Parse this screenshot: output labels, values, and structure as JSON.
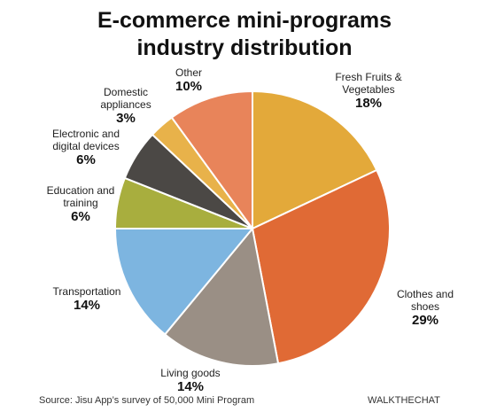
{
  "title_line1": "E-commerce mini-programs",
  "title_line2": "industry distribution",
  "source": "Source: Jisu App’s survey of 50,000 Mini Program",
  "brand": "WALKTHECHAT",
  "chart_data": {
    "type": "pie",
    "title": "E-commerce mini-programs industry distribution",
    "slices": [
      {
        "label": "Fresh Fruits &\nVegetables",
        "value": 18,
        "pct": "18%",
        "color": "#E3A93A"
      },
      {
        "label": "Clothes and\nshoes",
        "value": 29,
        "pct": "29%",
        "color": "#E06A35"
      },
      {
        "label": "Living goods",
        "value": 14,
        "pct": "14%",
        "color": "#9A8F85"
      },
      {
        "label": "Transportation",
        "value": 14,
        "pct": "14%",
        "color": "#7DB5E0"
      },
      {
        "label": "Education and\ntraining",
        "value": 6,
        "pct": "6%",
        "color": "#A8AE3E"
      },
      {
        "label": "Electronic and\ndigital devices",
        "value": 6,
        "pct": "6%",
        "color": "#4B4845"
      },
      {
        "label": "Domestic\nappliances",
        "value": 3,
        "pct": "3%",
        "color": "#E8B24A"
      },
      {
        "label": "Other",
        "value": 10,
        "pct": "10%",
        "color": "#E8845A"
      }
    ]
  }
}
